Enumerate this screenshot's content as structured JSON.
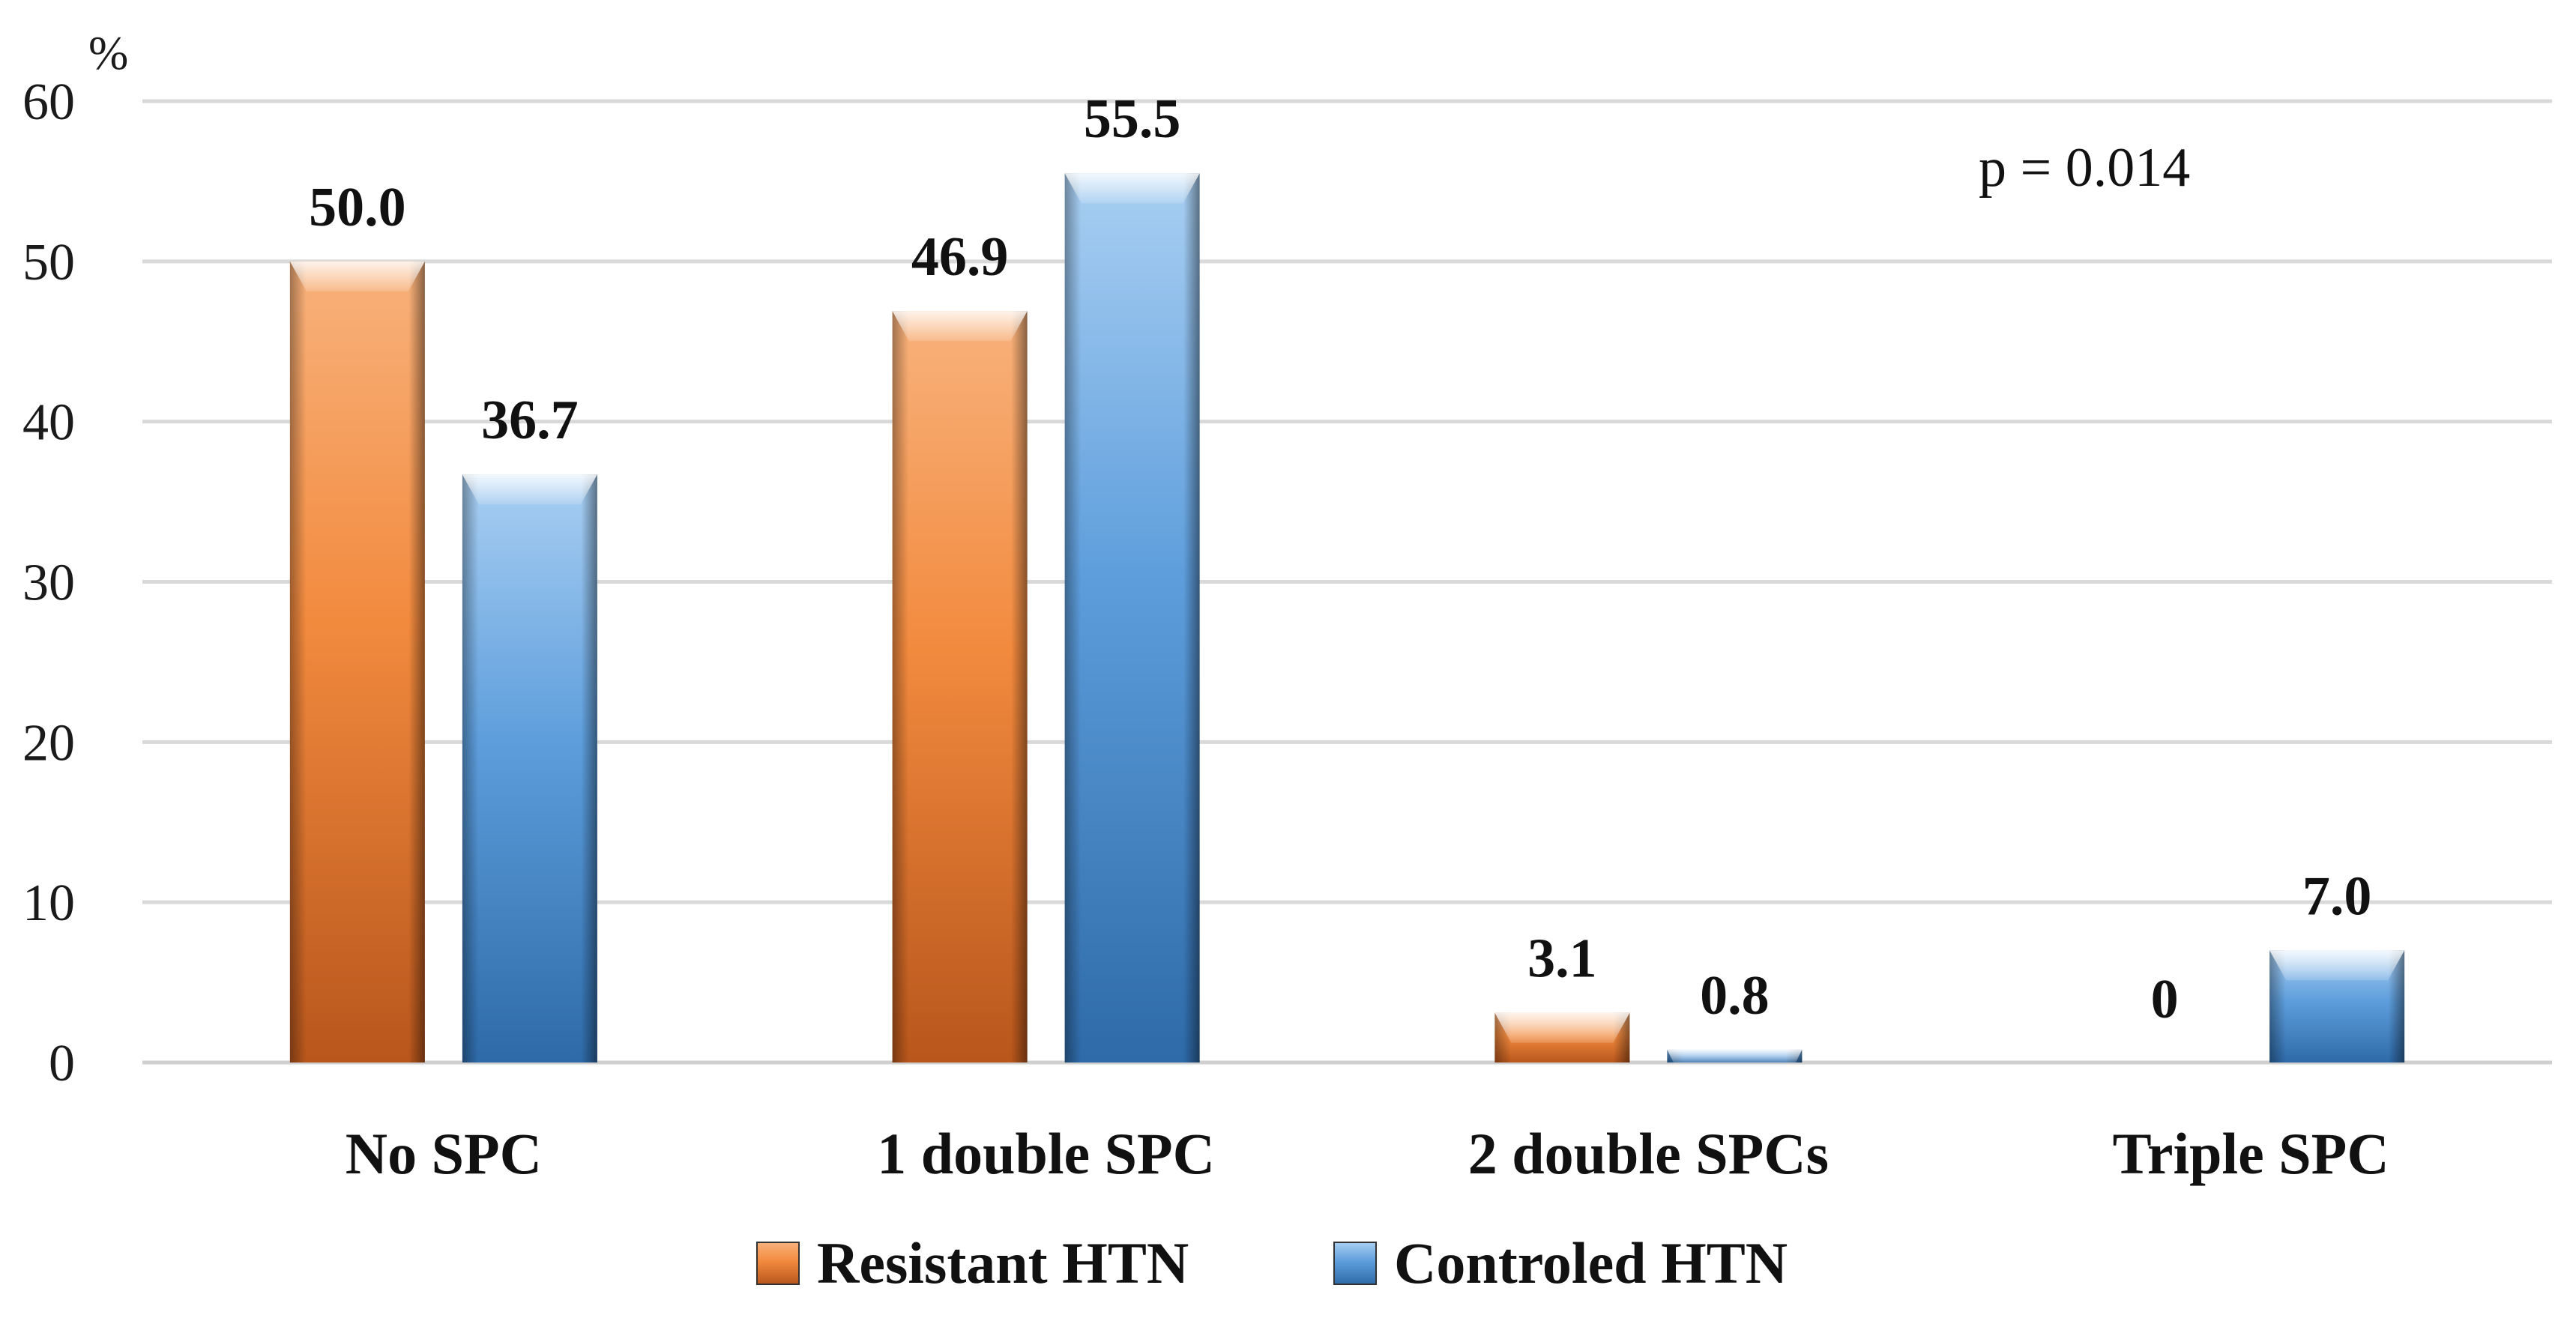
{
  "chart_data": {
    "type": "bar",
    "ylabel": "%",
    "ylim": [
      0,
      60
    ],
    "yticks": [
      0,
      10,
      20,
      30,
      40,
      50,
      60
    ],
    "grid": true,
    "categories": [
      "No SPC",
      "1 double SPC",
      "2 double SPCs",
      "Triple SPC"
    ],
    "series": [
      {
        "name": "Resistant HTN",
        "values": [
          50.0,
          46.9,
          3.1,
          0
        ],
        "labels": [
          "50.0",
          "46.9",
          "3.1",
          "0"
        ],
        "color": "#E8823A"
      },
      {
        "name": "Controled HTN",
        "values": [
          36.7,
          55.5,
          0.8,
          7.0
        ],
        "labels": [
          "36.7",
          "55.5",
          "0.8",
          "7.0"
        ],
        "color": "#4A8FD0"
      }
    ],
    "annotation": "p = 0.014",
    "legend_position": "bottom"
  }
}
